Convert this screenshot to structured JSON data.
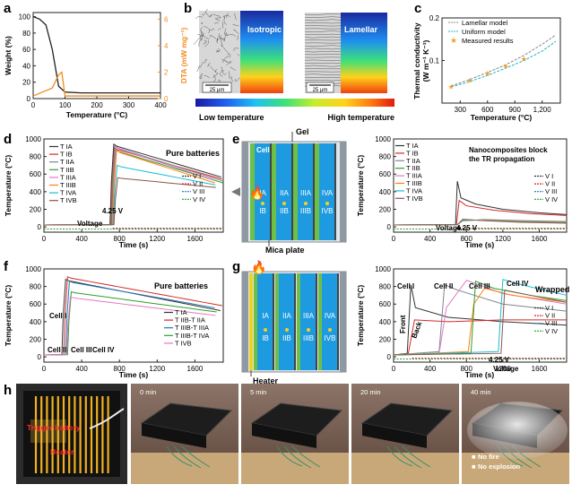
{
  "colors": {
    "orange": "#f08c1e",
    "cyan": "#1fb5c9",
    "bat": "#1e9be0",
    "green": "#6cc04a",
    "gray": "#7f8790",
    "dark": "#333",
    "red": "#d62728",
    "yellow": "#f3d21c"
  },
  "panel_labels": [
    "a",
    "b",
    "c",
    "d",
    "e",
    "f",
    "g",
    "h"
  ],
  "a": {
    "ylabel_left": "Weight (%)",
    "ylabel_right": "DTA (mW mg⁻¹)",
    "xlabel": "Temperature (°C)",
    "xticks": [
      "0",
      "100",
      "200",
      "300",
      "400"
    ],
    "yticks_left": [
      "0",
      "20",
      "40",
      "60",
      "80",
      "100"
    ],
    "yticks_right": [
      "0",
      "2",
      "4",
      "6"
    ],
    "chart_data": {
      "type": "line",
      "x_unit": "°C",
      "series": [
        {
          "axis": "left",
          "x": [
            0,
            20,
            40,
            60,
            80,
            100,
            150,
            400
          ],
          "values": [
            100,
            97,
            90,
            60,
            15,
            8,
            7,
            7
          ]
        },
        {
          "axis": "right",
          "x": [
            0,
            60,
            80,
            90,
            100,
            400
          ],
          "values": [
            0.2,
            0.8,
            1.8,
            2.0,
            0.2,
            0.2
          ]
        }
      ],
      "xlim": [
        0,
        400
      ],
      "ylim_left": [
        0,
        105
      ],
      "ylim_right": [
        0,
        6.5
      ]
    }
  },
  "b": {
    "label_iso": "Isotropic",
    "label_lam": "Lamellar",
    "scale_iso": "25 μm",
    "scale_lam": "25 μm",
    "low": "Low temperature",
    "high": "High temperature"
  },
  "c": {
    "ylabel": "Thermal conductivity (W m⁻¹ K⁻¹)",
    "ylabel1": "Thermal conductivity",
    "ylabel2": "(W m⁻¹ K⁻¹)",
    "xlabel": "Temperature (°C)",
    "xticks": [
      "300",
      "600",
      "900",
      "1,200"
    ],
    "yticks": [
      "0.1",
      "0.2"
    ],
    "legend": [
      "Lamellar model",
      "Uniform model",
      "Measured results"
    ],
    "chart_data": {
      "type": "line",
      "xlim": [
        100,
        1400
      ],
      "ylim": [
        0,
        0.2
      ],
      "series": [
        {
          "name": "Lamellar model",
          "x": [
            200,
            400,
            600,
            800,
            1000,
            1200,
            1350
          ],
          "values": [
            0.04,
            0.055,
            0.072,
            0.09,
            0.112,
            0.138,
            0.16
          ]
        },
        {
          "name": "Uniform model",
          "x": [
            200,
            400,
            600,
            800,
            1000,
            1200,
            1350
          ],
          "values": [
            0.038,
            0.05,
            0.065,
            0.082,
            0.1,
            0.122,
            0.145
          ]
        },
        {
          "name": "Measured results",
          "x": [
            200,
            400,
            600,
            800,
            1000
          ],
          "values": [
            0.04,
            0.055,
            0.072,
            0.088,
            0.105
          ]
        }
      ]
    }
  },
  "d": {
    "title": "Pure batteries",
    "ylabel": "Temperature (°C)",
    "xlabel": "Time (s)",
    "xticks": [
      "0",
      "400",
      "800",
      "1200",
      "1600"
    ],
    "yticks": [
      "0",
      "200",
      "400",
      "600",
      "800",
      "1000"
    ],
    "legend_t": [
      "T IA",
      "T IB",
      "T IIA",
      "T IIB",
      "T IIIA",
      "T IIIB",
      "T IVA",
      "T IVB"
    ],
    "legend_v": [
      "V I",
      "V II",
      "V III",
      "V IV"
    ],
    "v_label": "4.25 V",
    "voltage": "Voltage"
  },
  "e": {
    "gel": "Gel",
    "cell": "Cell",
    "mica": "Mica plate",
    "labels": [
      "IA",
      "IIA",
      "IIIA",
      "IVA",
      "IB",
      "IIB",
      "IIIB",
      "IVB"
    ],
    "title1": "Nanocomposites block",
    "title2": "the TR propagation",
    "ylabel": "Temperature (°C)",
    "xlabel": "Time (s)",
    "xticks": [
      "0",
      "400",
      "800",
      "1200",
      "1600"
    ],
    "yticks": [
      "0",
      "200",
      "400",
      "600",
      "800",
      "1000"
    ],
    "legend_t": [
      "T IA",
      "T IB",
      "T IIA",
      "T IIB",
      "T IIIA",
      "T IIIB",
      "T IVA",
      "T IVB"
    ],
    "legend_v": [
      "V I",
      "V II",
      "V III",
      "V IV"
    ],
    "v_label": "4.25 V",
    "voltage": "Voltage"
  },
  "f": {
    "title": "Pure batteries",
    "ylabel": "Temperature (°C)",
    "xlabel": "Time (s)",
    "xticks": [
      "0",
      "400",
      "800",
      "1200",
      "1600"
    ],
    "yticks": [
      "0",
      "200",
      "400",
      "600",
      "800",
      "1000"
    ],
    "legend": [
      "T IA",
      "T IIB-T IIA",
      "T IIIB-T IIIA",
      "T IIIB-T IVA",
      "T IVB"
    ],
    "cells": [
      "Cell I",
      "Cell II",
      "Cell III",
      "Cell IV"
    ]
  },
  "g": {
    "heater": "Heater",
    "labels": [
      "IA",
      "IIA",
      "IIIA",
      "IVA",
      "IB",
      "IIB",
      "IIIB",
      "IVB"
    ],
    "title": "Wrapped",
    "ylabel": "Temperature (°C)",
    "xlabel": "Time (s)",
    "xticks": [
      "0",
      "400",
      "800",
      "1200",
      "1600"
    ],
    "yticks": [
      "0",
      "200",
      "400",
      "600",
      "800",
      "1000"
    ],
    "cells": [
      "Cell I",
      "Cell II",
      "Cell III",
      "Cell IV"
    ],
    "front": "Front",
    "back": "Back",
    "legend_v": [
      "V I",
      "V II",
      "V III",
      "V IV"
    ],
    "v_label": "4.25 V",
    "voltage": "Voltage"
  },
  "h": {
    "trigger": "Trigger battery",
    "heater": "Heater",
    "times": [
      "0 min",
      "5 min",
      "20 min",
      "40 min"
    ],
    "note1": "No fire",
    "note2": "No explosion"
  }
}
